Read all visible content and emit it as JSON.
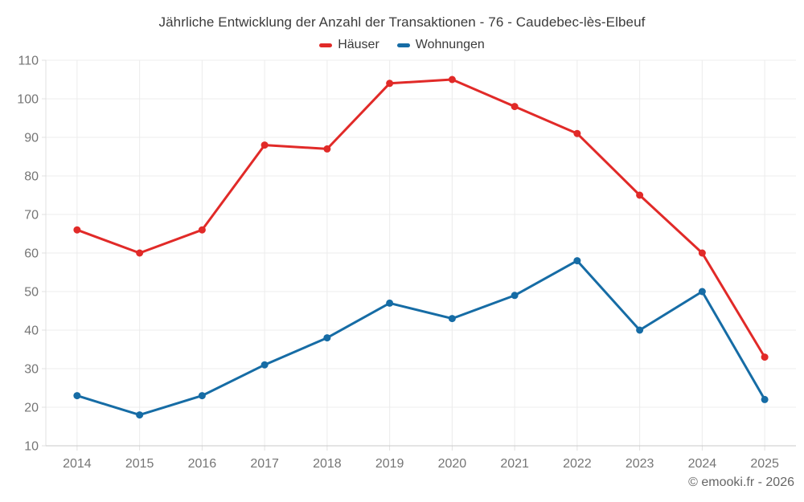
{
  "title": "Jährliche Entwicklung der Anzahl der Transaktionen - 76 - Caudebec-lès-Elbeuf",
  "legend": [
    {
      "label": "Häuser",
      "color": "#e12a28"
    },
    {
      "label": "Wohnungen",
      "color": "#166ca5"
    }
  ],
  "footer": "© emooki.fr - 2026",
  "colors": {
    "background": "#ffffff",
    "gridline": "#ececec",
    "spine": "#e0e0e0",
    "axis_line": "#c9c9c9",
    "tick": "#e0e0e0",
    "tick_label": "#757575",
    "title_text": "#3b3b3b",
    "footer_text": "#666666",
    "hauser_red": "#e12a28",
    "wohnungen_blue": "#166ca5"
  },
  "chart_data": {
    "type": "line",
    "title": "Jährliche Entwicklung der Anzahl der Transaktionen - 76 - Caudebec-lès-Elbeuf",
    "categories": [
      "2014",
      "2015",
      "2016",
      "2017",
      "2018",
      "2019",
      "2020",
      "2021",
      "2022",
      "2023",
      "2024",
      "2025"
    ],
    "series": [
      {
        "name": "Häuser",
        "color": "#e12a28",
        "values": [
          66,
          60,
          66,
          88,
          87,
          104,
          105,
          98,
          91,
          75,
          60,
          33
        ]
      },
      {
        "name": "Wohnungen",
        "color": "#166ca5",
        "values": [
          23,
          18,
          23,
          31,
          38,
          47,
          43,
          49,
          58,
          40,
          50,
          22
        ]
      }
    ],
    "xlabel": "",
    "ylabel": "",
    "ylim": [
      10,
      110
    ],
    "ytick_step": 10,
    "grid": true,
    "legend_position": "top",
    "marker": "circle"
  }
}
